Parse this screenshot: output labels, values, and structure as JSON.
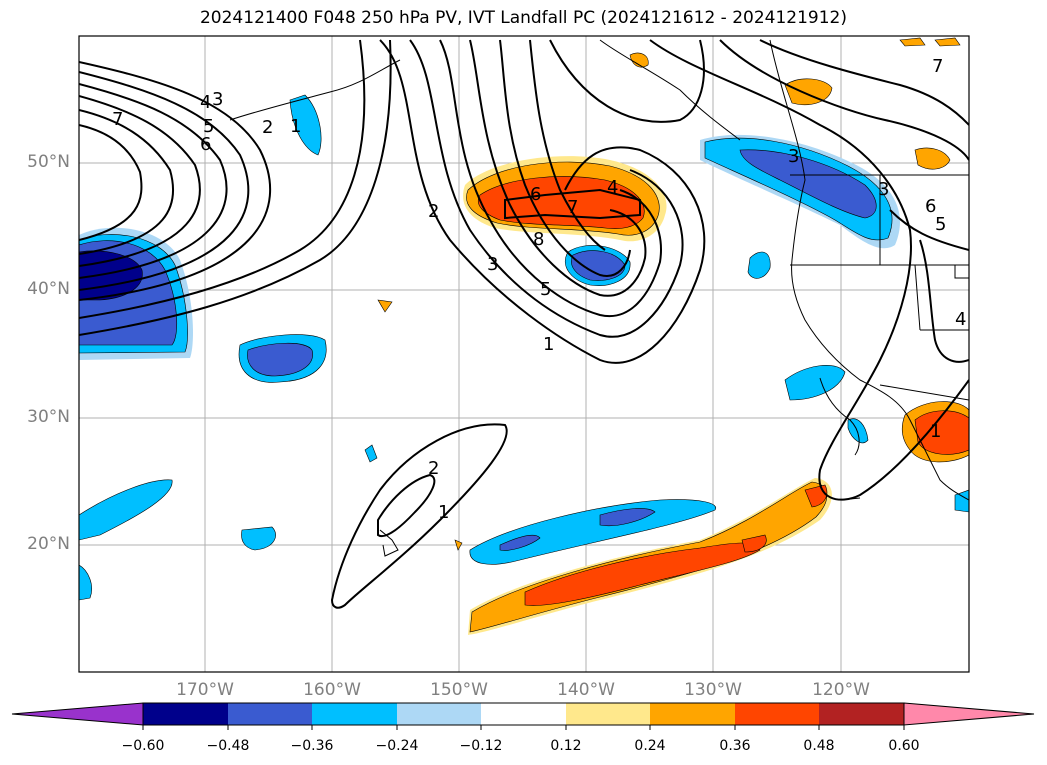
{
  "title": "2024121400 F048 250 hPa PV, IVT Landfall PC (2024121612 - 2024121912)",
  "map": {
    "latitude_labels": [
      "50°N",
      "40°N",
      "30°N",
      "20°N"
    ],
    "longitude_labels": [
      "170°W",
      "160°W",
      "150°W",
      "140°W",
      "130°W",
      "120°W"
    ],
    "pv_contour_labels": [
      "7",
      "4",
      "3",
      "5",
      "2",
      "1",
      "6",
      "2",
      "3",
      "6",
      "4",
      "7",
      "8",
      "3",
      "5",
      "1",
      "2",
      "1",
      "3",
      "6",
      "5",
      "7",
      "4",
      "1"
    ]
  },
  "colorbar": {
    "tick_labels": [
      "−0.60",
      "−0.48",
      "−0.36",
      "−0.24",
      "−0.12",
      "0.12",
      "0.24",
      "0.36",
      "0.48",
      "0.60"
    ],
    "colors": [
      "#9932cc",
      "#00008b",
      "#3a5bd0",
      "#00bfff",
      "#add8f5",
      "#ffffff",
      "#ffe88c",
      "#ffa500",
      "#ff4500",
      "#b22222",
      "#ff88aa"
    ]
  }
}
